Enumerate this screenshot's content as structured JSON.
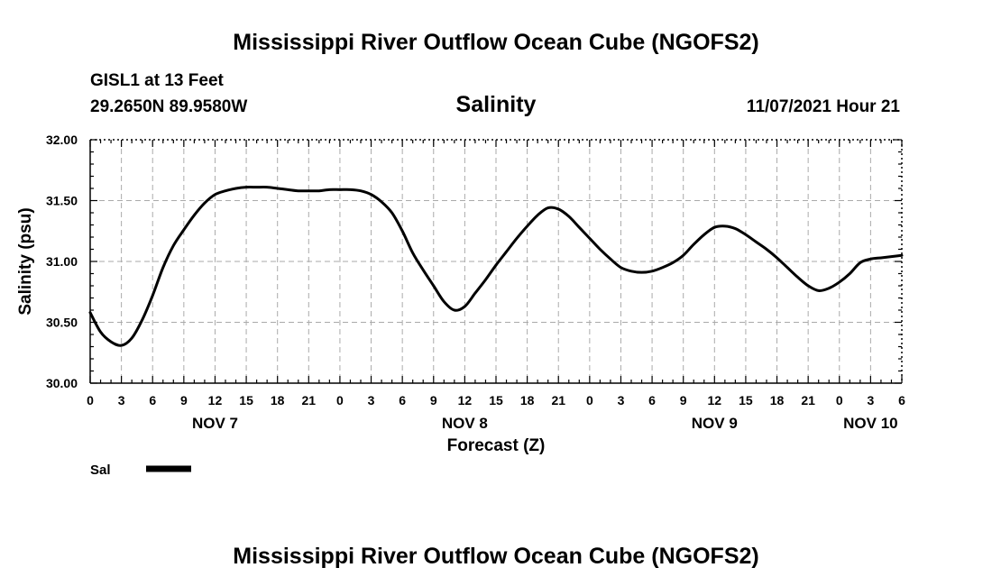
{
  "page_title": "Mississippi River Outflow Ocean Cube (NGOFS2)",
  "station": "GISL1 at 13 Feet",
  "location": "29.2650N  89.9580W",
  "run_time": "11/07/2021 Hour 21",
  "footer_title": "Mississippi River Outflow Ocean Cube (NGOFS2)",
  "colors": {
    "line": "#000000",
    "grid": "#aaaaaa",
    "axis": "#000000"
  },
  "chart_data": {
    "type": "line",
    "title": "Salinity",
    "xlabel": "Forecast (Z)",
    "ylabel": "Salinity (psu)",
    "xlim": [
      0,
      78
    ],
    "ylim": [
      30.0,
      32.0
    ],
    "x_ticks": [
      0,
      3,
      6,
      9,
      12,
      15,
      18,
      21,
      24,
      27,
      30,
      33,
      36,
      39,
      42,
      45,
      48,
      51,
      54,
      57,
      60,
      63,
      66,
      69,
      72,
      75,
      78
    ],
    "x_tick_labels": [
      "0",
      "3",
      "6",
      "9",
      "12",
      "15",
      "18",
      "21",
      "0",
      "3",
      "6",
      "9",
      "12",
      "15",
      "18",
      "21",
      "0",
      "3",
      "6",
      "9",
      "12",
      "15",
      "18",
      "21",
      "0",
      "3",
      "6"
    ],
    "y_ticks": [
      30.0,
      30.5,
      31.0,
      31.5,
      32.0
    ],
    "y_tick_labels": [
      "30.00",
      "30.50",
      "31.00",
      "31.50",
      "32.00"
    ],
    "day_labels": [
      {
        "x": 12,
        "label": "NOV 7"
      },
      {
        "x": 36,
        "label": "NOV 8"
      },
      {
        "x": 60,
        "label": "NOV 9"
      },
      {
        "x": 75,
        "label": "NOV 10"
      }
    ],
    "grid": true,
    "legend": {
      "position": "bottom-left",
      "entries": [
        {
          "label": "Sal",
          "style": "thick-solid"
        }
      ]
    },
    "series": [
      {
        "name": "Sal",
        "x": [
          0,
          1,
          2,
          3,
          4,
          5,
          6,
          7,
          8,
          9,
          10,
          11,
          12,
          13,
          14,
          15,
          16,
          17,
          18,
          19,
          20,
          21,
          22,
          23,
          24,
          25,
          26,
          27,
          28,
          29,
          30,
          31,
          32,
          33,
          34,
          35,
          36,
          37,
          38,
          39,
          40,
          41,
          42,
          43,
          44,
          45,
          46,
          47,
          48,
          49,
          50,
          51,
          52,
          53,
          54,
          55,
          56,
          57,
          58,
          59,
          60,
          61,
          62,
          63,
          64,
          65,
          66,
          67,
          68,
          69,
          70,
          71,
          72,
          73,
          74,
          75,
          76,
          77,
          78
        ],
        "values": [
          30.58,
          30.42,
          30.34,
          30.31,
          30.37,
          30.52,
          30.72,
          30.95,
          31.13,
          31.26,
          31.38,
          31.48,
          31.55,
          31.58,
          31.6,
          31.61,
          31.61,
          31.61,
          31.6,
          31.59,
          31.58,
          31.58,
          31.58,
          31.59,
          31.59,
          31.59,
          31.58,
          31.55,
          31.49,
          31.4,
          31.25,
          31.07,
          30.93,
          30.8,
          30.67,
          30.6,
          30.63,
          30.74,
          30.85,
          30.97,
          31.08,
          31.19,
          31.29,
          31.38,
          31.44,
          31.43,
          31.37,
          31.28,
          31.19,
          31.1,
          31.02,
          30.95,
          30.92,
          30.91,
          30.92,
          30.95,
          30.99,
          31.05,
          31.14,
          31.22,
          31.28,
          31.29,
          31.27,
          31.22,
          31.16,
          31.1,
          31.03,
          30.95,
          30.87,
          30.8,
          30.76,
          30.78,
          30.83,
          30.9,
          30.99,
          31.02,
          31.03,
          31.04,
          31.05
        ]
      }
    ]
  }
}
